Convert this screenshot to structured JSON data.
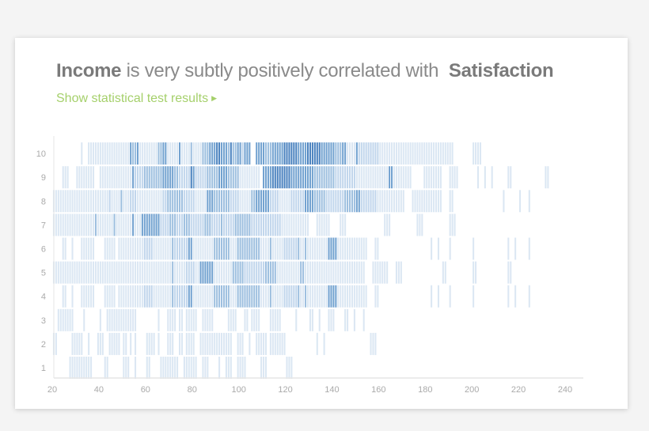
{
  "header": {
    "title_var1": "Income",
    "title_middle": "is very subtly positively correlated with",
    "title_var2": "Satisfaction",
    "link_label": "Show statistical test results",
    "link_icon": "triangle-right-icon"
  },
  "colors": {
    "link": "#a5d06b",
    "levels": [
      "#ffffff",
      "#dbe7f3",
      "#c1d6ec",
      "#9dbfdf",
      "#72a2d0",
      "#4a82bf"
    ]
  },
  "chart_data": {
    "type": "heatmap",
    "xlim": [
      20,
      240
    ],
    "x_ticks": [
      20,
      40,
      60,
      80,
      100,
      120,
      140,
      160,
      180,
      200,
      220,
      240
    ],
    "y_categories": [
      1,
      2,
      3,
      4,
      5,
      6,
      7,
      8,
      9,
      10
    ],
    "value_encoding": "each row lists [income_start, income_end, density_level 1-5]",
    "rows": {
      "10": [
        [
          32,
          32,
          1
        ],
        [
          35,
          52,
          1
        ],
        [
          53,
          53,
          4
        ],
        [
          54,
          55,
          3
        ],
        [
          56,
          56,
          4
        ],
        [
          57,
          64,
          1
        ],
        [
          65,
          66,
          3
        ],
        [
          67,
          68,
          4
        ],
        [
          69,
          73,
          1
        ],
        [
          74,
          74,
          4
        ],
        [
          75,
          78,
          1
        ],
        [
          79,
          79,
          3
        ],
        [
          80,
          83,
          1
        ],
        [
          84,
          86,
          3
        ],
        [
          87,
          89,
          4
        ],
        [
          90,
          91,
          5
        ],
        [
          92,
          94,
          4
        ],
        [
          95,
          95,
          3
        ],
        [
          96,
          96,
          5
        ],
        [
          97,
          98,
          3
        ],
        [
          99,
          100,
          4
        ],
        [
          101,
          101,
          2
        ],
        [
          102,
          104,
          4
        ],
        [
          107,
          110,
          4
        ],
        [
          111,
          113,
          3
        ],
        [
          114,
          118,
          4
        ],
        [
          119,
          124,
          5
        ],
        [
          125,
          128,
          4
        ],
        [
          129,
          134,
          5
        ],
        [
          135,
          140,
          4
        ],
        [
          141,
          143,
          3
        ],
        [
          144,
          145,
          4
        ],
        [
          146,
          149,
          1
        ],
        [
          150,
          150,
          4
        ],
        [
          151,
          159,
          2
        ],
        [
          160,
          191,
          1
        ],
        [
          200,
          203,
          1
        ]
      ],
      "9": [
        [
          24,
          26,
          1
        ],
        [
          30,
          37,
          1
        ],
        [
          40,
          53,
          1
        ],
        [
          54,
          54,
          4
        ],
        [
          55,
          58,
          2
        ],
        [
          59,
          66,
          3
        ],
        [
          67,
          71,
          4
        ],
        [
          72,
          73,
          3
        ],
        [
          74,
          78,
          2
        ],
        [
          79,
          79,
          5
        ],
        [
          80,
          80,
          4
        ],
        [
          81,
          85,
          2
        ],
        [
          86,
          90,
          3
        ],
        [
          91,
          94,
          4
        ],
        [
          95,
          99,
          3
        ],
        [
          100,
          108,
          1
        ],
        [
          110,
          113,
          4
        ],
        [
          114,
          121,
          5
        ],
        [
          122,
          131,
          4
        ],
        [
          132,
          140,
          3
        ],
        [
          141,
          149,
          2
        ],
        [
          150,
          163,
          1
        ],
        [
          164,
          165,
          4
        ],
        [
          166,
          173,
          1
        ],
        [
          179,
          186,
          1
        ],
        [
          190,
          193,
          1
        ],
        [
          202,
          202,
          1
        ],
        [
          205,
          205,
          1
        ],
        [
          208,
          208,
          1
        ],
        [
          215,
          216,
          1
        ],
        [
          231,
          232,
          1
        ]
      ],
      "8": [
        [
          20,
          43,
          1
        ],
        [
          44,
          44,
          2
        ],
        [
          45,
          48,
          1
        ],
        [
          49,
          49,
          3
        ],
        [
          50,
          52,
          1
        ],
        [
          53,
          55,
          2
        ],
        [
          56,
          66,
          1
        ],
        [
          67,
          68,
          2
        ],
        [
          69,
          75,
          3
        ],
        [
          76,
          80,
          2
        ],
        [
          81,
          85,
          1
        ],
        [
          86,
          88,
          4
        ],
        [
          89,
          95,
          3
        ],
        [
          96,
          99,
          2
        ],
        [
          100,
          104,
          1
        ],
        [
          105,
          106,
          3
        ],
        [
          107,
          112,
          4
        ],
        [
          113,
          116,
          2
        ],
        [
          117,
          121,
          1
        ],
        [
          122,
          127,
          2
        ],
        [
          128,
          131,
          4
        ],
        [
          132,
          136,
          3
        ],
        [
          137,
          144,
          2
        ],
        [
          145,
          149,
          3
        ],
        [
          150,
          151,
          4
        ],
        [
          152,
          158,
          2
        ],
        [
          159,
          170,
          1
        ],
        [
          174,
          186,
          1
        ],
        [
          190,
          191,
          1
        ],
        [
          213,
          213,
          1
        ],
        [
          220,
          220,
          1
        ],
        [
          224,
          224,
          1
        ]
      ],
      "7": [
        [
          20,
          37,
          1
        ],
        [
          38,
          38,
          3
        ],
        [
          39,
          45,
          1
        ],
        [
          46,
          46,
          3
        ],
        [
          47,
          53,
          1
        ],
        [
          54,
          54,
          4
        ],
        [
          55,
          57,
          1
        ],
        [
          58,
          65,
          4
        ],
        [
          66,
          69,
          2
        ],
        [
          70,
          72,
          3
        ],
        [
          73,
          75,
          2
        ],
        [
          76,
          78,
          3
        ],
        [
          79,
          84,
          2
        ],
        [
          85,
          87,
          3
        ],
        [
          88,
          91,
          2
        ],
        [
          92,
          92,
          3
        ],
        [
          93,
          97,
          2
        ],
        [
          98,
          104,
          3
        ],
        [
          105,
          117,
          2
        ],
        [
          118,
          129,
          1
        ],
        [
          133,
          138,
          1
        ],
        [
          143,
          145,
          1
        ],
        [
          162,
          164,
          1
        ],
        [
          176,
          178,
          1
        ],
        [
          190,
          192,
          1
        ]
      ],
      "6": [
        [
          24,
          25,
          1
        ],
        [
          28,
          28,
          1
        ],
        [
          32,
          37,
          1
        ],
        [
          42,
          46,
          1
        ],
        [
          48,
          58,
          1
        ],
        [
          59,
          62,
          2
        ],
        [
          63,
          70,
          1
        ],
        [
          71,
          71,
          3
        ],
        [
          72,
          77,
          2
        ],
        [
          78,
          79,
          4
        ],
        [
          80,
          88,
          1
        ],
        [
          89,
          95,
          3
        ],
        [
          96,
          98,
          1
        ],
        [
          99,
          108,
          3
        ],
        [
          109,
          112,
          1
        ],
        [
          113,
          113,
          3
        ],
        [
          114,
          118,
          1
        ],
        [
          119,
          124,
          2
        ],
        [
          125,
          125,
          3
        ],
        [
          126,
          127,
          1
        ],
        [
          128,
          128,
          3
        ],
        [
          129,
          137,
          1
        ],
        [
          138,
          141,
          4
        ],
        [
          142,
          154,
          1
        ],
        [
          158,
          159,
          1
        ],
        [
          182,
          182,
          1
        ],
        [
          185,
          185,
          1
        ],
        [
          190,
          190,
          1
        ],
        [
          200,
          200,
          1
        ],
        [
          215,
          215,
          1
        ],
        [
          218,
          218,
          1
        ],
        [
          224,
          224,
          1
        ]
      ],
      "5": [
        [
          20,
          70,
          1
        ],
        [
          71,
          71,
          3
        ],
        [
          72,
          76,
          1
        ],
        [
          77,
          80,
          2
        ],
        [
          81,
          82,
          1
        ],
        [
          83,
          88,
          4
        ],
        [
          89,
          96,
          1
        ],
        [
          97,
          101,
          3
        ],
        [
          102,
          110,
          2
        ],
        [
          111,
          115,
          3
        ],
        [
          116,
          125,
          1
        ],
        [
          126,
          127,
          3
        ],
        [
          128,
          153,
          1
        ],
        [
          157,
          163,
          1
        ],
        [
          167,
          169,
          1
        ],
        [
          187,
          188,
          1
        ],
        [
          200,
          201,
          1
        ],
        [
          215,
          216,
          1
        ]
      ],
      "4": [
        [
          24,
          25,
          1
        ],
        [
          28,
          28,
          1
        ],
        [
          32,
          37,
          1
        ],
        [
          42,
          46,
          1
        ],
        [
          48,
          58,
          1
        ],
        [
          59,
          62,
          2
        ],
        [
          63,
          70,
          1
        ],
        [
          71,
          71,
          3
        ],
        [
          72,
          77,
          2
        ],
        [
          78,
          79,
          4
        ],
        [
          80,
          88,
          1
        ],
        [
          89,
          95,
          3
        ],
        [
          96,
          98,
          1
        ],
        [
          99,
          108,
          3
        ],
        [
          109,
          112,
          1
        ],
        [
          113,
          113,
          3
        ],
        [
          114,
          118,
          1
        ],
        [
          119,
          124,
          2
        ],
        [
          125,
          125,
          3
        ],
        [
          126,
          127,
          1
        ],
        [
          128,
          128,
          3
        ],
        [
          129,
          137,
          1
        ],
        [
          138,
          141,
          4
        ],
        [
          142,
          154,
          1
        ],
        [
          158,
          159,
          1
        ],
        [
          182,
          182,
          1
        ],
        [
          185,
          185,
          1
        ],
        [
          190,
          190,
          1
        ],
        [
          200,
          200,
          1
        ],
        [
          215,
          215,
          1
        ],
        [
          218,
          218,
          1
        ],
        [
          224,
          224,
          1
        ]
      ],
      "3": [
        [
          22,
          28,
          1
        ],
        [
          33,
          33,
          1
        ],
        [
          40,
          40,
          1
        ],
        [
          43,
          55,
          1
        ],
        [
          65,
          65,
          1
        ],
        [
          69,
          72,
          1
        ],
        [
          74,
          75,
          1
        ],
        [
          77,
          81,
          1
        ],
        [
          84,
          88,
          1
        ],
        [
          95,
          98,
          1
        ],
        [
          102,
          103,
          1
        ],
        [
          105,
          108,
          1
        ],
        [
          113,
          117,
          1
        ],
        [
          124,
          124,
          1
        ],
        [
          130,
          131,
          1
        ],
        [
          134,
          134,
          1
        ],
        [
          138,
          140,
          1
        ],
        [
          145,
          146,
          1
        ],
        [
          149,
          149,
          1
        ],
        [
          153,
          153,
          1
        ]
      ],
      "2": [
        [
          20,
          21,
          1
        ],
        [
          28,
          32,
          1
        ],
        [
          35,
          35,
          1
        ],
        [
          39,
          41,
          1
        ],
        [
          44,
          48,
          1
        ],
        [
          50,
          51,
          1
        ],
        [
          53,
          53,
          1
        ],
        [
          55,
          55,
          1
        ],
        [
          60,
          63,
          1
        ],
        [
          65,
          65,
          1
        ],
        [
          69,
          71,
          1
        ],
        [
          74,
          75,
          1
        ],
        [
          77,
          80,
          1
        ],
        [
          83,
          96,
          1
        ],
        [
          99,
          101,
          1
        ],
        [
          104,
          104,
          1
        ],
        [
          107,
          111,
          1
        ],
        [
          113,
          119,
          1
        ],
        [
          133,
          133,
          1
        ],
        [
          136,
          136,
          1
        ],
        [
          156,
          158,
          1
        ]
      ],
      "1": [
        [
          27,
          36,
          1
        ],
        [
          42,
          43,
          1
        ],
        [
          50,
          52,
          1
        ],
        [
          55,
          55,
          1
        ],
        [
          60,
          61,
          1
        ],
        [
          66,
          73,
          1
        ],
        [
          76,
          81,
          1
        ],
        [
          84,
          86,
          1
        ],
        [
          91,
          91,
          1
        ],
        [
          94,
          96,
          1
        ],
        [
          99,
          102,
          1
        ],
        [
          109,
          111,
          1
        ],
        [
          120,
          122,
          1
        ]
      ]
    }
  }
}
